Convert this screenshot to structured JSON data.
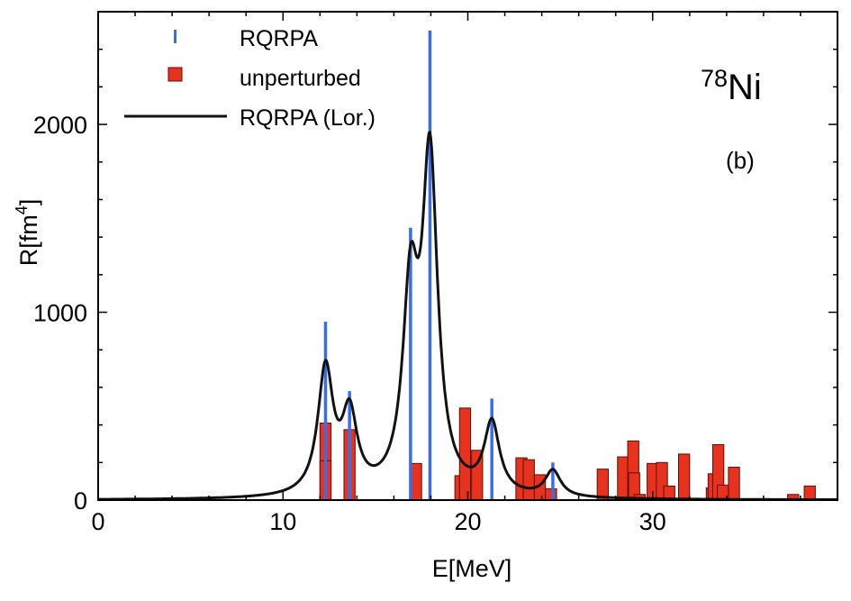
{
  "chart_data": {
    "type": "bar",
    "xlabel": "E[MeV]",
    "ylabel": "R[fm",
    "ylabel_superscript": "4",
    "ylabel_suffix": "]",
    "xlim": [
      0,
      40
    ],
    "ylim": [
      0,
      2600
    ],
    "x_ticks": [
      0,
      10,
      20,
      30
    ],
    "x_tick_labels": [
      "0",
      "10",
      "20",
      "30"
    ],
    "y_ticks": [
      0,
      1000,
      2000
    ],
    "y_tick_labels": [
      "0",
      "1000",
      "2000"
    ],
    "legend": {
      "placement": "top-left",
      "entries": [
        {
          "label": "RQRPA",
          "style": "stick",
          "color": "#3a6ee8"
        },
        {
          "label": "unperturbed",
          "style": "bar",
          "color": "#e8321e"
        },
        {
          "label": "RQRPA (Lor.)",
          "style": "line",
          "color": "#111111"
        }
      ]
    },
    "annotations": {
      "nucleus_mass": "78",
      "nucleus_symbol": "Ni",
      "panel": "(b)"
    },
    "colors": {
      "rqrpa": "#3a6ee8",
      "unperturbed_fill": "#e8321e",
      "unperturbed_edge": "#5a1008",
      "lorentzian": "#111111"
    },
    "lorentzian_width_mev": 1.0,
    "series": [
      {
        "name": "RQRPA",
        "style": "stick",
        "points": [
          {
            "x": 12.3,
            "y": 950
          },
          {
            "x": 13.6,
            "y": 580
          },
          {
            "x": 16.9,
            "y": 1450
          },
          {
            "x": 17.95,
            "y": 2500
          },
          {
            "x": 21.3,
            "y": 540
          },
          {
            "x": 24.6,
            "y": 200
          }
        ]
      },
      {
        "name": "unperturbed",
        "style": "bar",
        "points": [
          {
            "x": 12.3,
            "y": 410
          },
          {
            "x": 12.3,
            "y": 210
          },
          {
            "x": 13.6,
            "y": 375
          },
          {
            "x": 17.2,
            "y": 195
          },
          {
            "x": 19.6,
            "y": 130
          },
          {
            "x": 19.85,
            "y": 490
          },
          {
            "x": 20.5,
            "y": 265
          },
          {
            "x": 22.9,
            "y": 225
          },
          {
            "x": 23.3,
            "y": 215
          },
          {
            "x": 23.9,
            "y": 135
          },
          {
            "x": 24.5,
            "y": 60
          },
          {
            "x": 27.3,
            "y": 165
          },
          {
            "x": 28.4,
            "y": 230
          },
          {
            "x": 28.95,
            "y": 315
          },
          {
            "x": 29.0,
            "y": 145
          },
          {
            "x": 29.3,
            "y": 30
          },
          {
            "x": 30.0,
            "y": 195
          },
          {
            "x": 30.5,
            "y": 200
          },
          {
            "x": 30.9,
            "y": 75
          },
          {
            "x": 31.7,
            "y": 245
          },
          {
            "x": 33.2,
            "y": 65
          },
          {
            "x": 33.3,
            "y": 140
          },
          {
            "x": 33.55,
            "y": 295
          },
          {
            "x": 33.8,
            "y": 80
          },
          {
            "x": 34.4,
            "y": 175
          },
          {
            "x": 37.6,
            "y": 30
          },
          {
            "x": 38.5,
            "y": 75
          }
        ]
      }
    ]
  }
}
